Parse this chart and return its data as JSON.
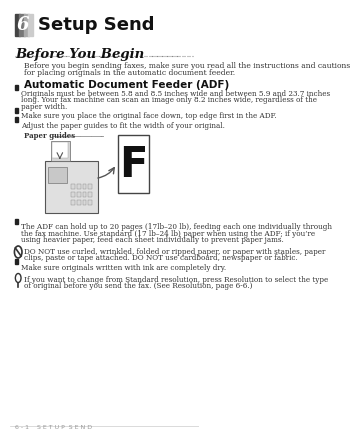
{
  "bg_color": "#ffffff",
  "header_box_color": "#888888",
  "header_number": "6",
  "header_title": "Setup Send",
  "section_title": "Before You Begin",
  "dotted_line_color": "#aaaaaa",
  "intro_text": "Before you begin sending faxes, make sure you read all the instructions and cautions\nfor placing originals in the automatic document feeder.",
  "subsection_title": "Automatic Document Feeder (ADF)",
  "bullet_items": [
    "Originals must be between 5.8 and 8.5 inches wide and between 5.9 and 23.7 inches\nlong. Your fax machine can scan an image only 8.2 inches wide, regardless of the\npaper width.",
    "Make sure you place the original face down, top edge first in the ADF.",
    "Adjust the paper guides to fit the width of your original."
  ],
  "paper_guides_label": "Paper guides",
  "bottom_bullets": [
    "The ADF can hold up to 20 pages (17lb–20 lb), feeding each one individually through\nthe fax machine. Use standard (17 lb–24 lb) paper when using the ADF; if you’re\nusing heavier paper, feed each sheet individually to prevent paper jams."
  ],
  "do_not_text": "DO NOT use curled, wrinkled, folded or ripped paper, or paper with staples, paper\nclips, paste or tape attached. DO NOT use cardboard, newspaper or fabric.",
  "ink_text": "Make sure originals written with ink are completely dry.",
  "resolution_text": "If you want to change from Standard resolution, press Resolution to select the type\nof original before you send the fax. (See Resolution, page 6-6.)",
  "footer_text": "6 - 1    S E T U P  S E N D",
  "footer_color": "#999999",
  "text_color": "#333333",
  "bullet_color": "#222222"
}
